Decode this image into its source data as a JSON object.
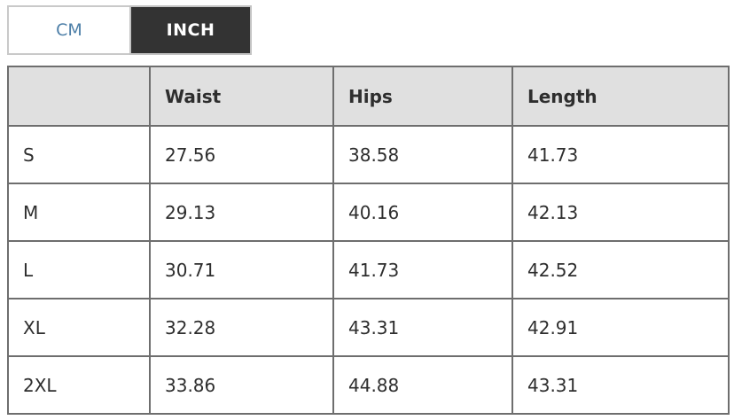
{
  "unit_toggle": {
    "cm_label": "CM",
    "inch_label": "INCH",
    "active_unit": "INCH",
    "active_bg_color": "#333333",
    "inactive_text_color": "#4d7fa8"
  },
  "size_table": {
    "columns": [
      "",
      "Waist",
      "Hips",
      "Length"
    ],
    "header_bg_color": "#e0e0e0",
    "border_color": "#6e6e6e",
    "rows": [
      {
        "size": "S",
        "waist": "27.56",
        "hips": "38.58",
        "length": "41.73"
      },
      {
        "size": "M",
        "waist": "29.13",
        "hips": "40.16",
        "length": "42.13"
      },
      {
        "size": "L",
        "waist": "30.71",
        "hips": "41.73",
        "length": "42.52"
      },
      {
        "size": "XL",
        "waist": "32.28",
        "hips": "43.31",
        "length": "42.91"
      },
      {
        "size": "2XL",
        "waist": "33.86",
        "hips": "44.88",
        "length": "43.31"
      }
    ]
  }
}
